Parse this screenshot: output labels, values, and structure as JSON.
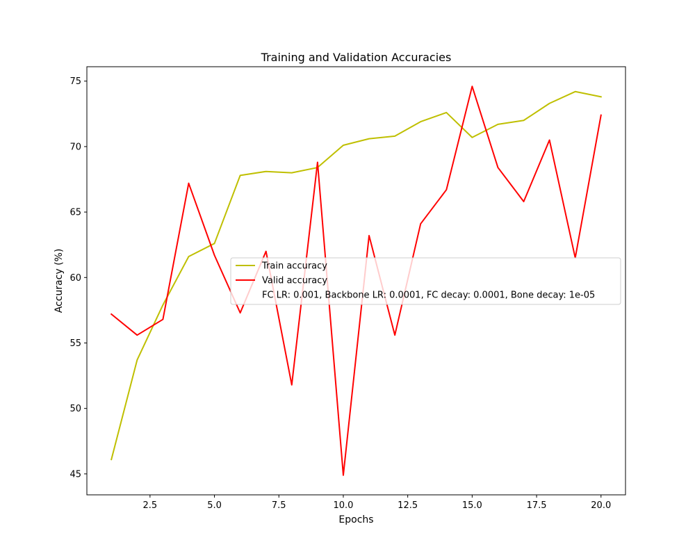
{
  "chart_data": {
    "type": "line",
    "title": "Training and Validation Accuracies",
    "xlabel": "Epochs",
    "ylabel": "Accuracy (%)",
    "xlim": [
      0.05,
      20.95
    ],
    "ylim": [
      43.4,
      76.1
    ],
    "xticks": [
      2.5,
      5.0,
      7.5,
      10.0,
      12.5,
      15.0,
      17.5,
      20.0
    ],
    "xtick_labels": [
      "2.5",
      "5.0",
      "7.5",
      "10.0",
      "12.5",
      "15.0",
      "17.5",
      "20.0"
    ],
    "yticks": [
      45,
      50,
      55,
      60,
      65,
      70,
      75
    ],
    "ytick_labels": [
      "45",
      "50",
      "55",
      "60",
      "65",
      "70",
      "75"
    ],
    "grid": false,
    "legend_position": "center-right",
    "x": [
      1,
      2,
      3,
      4,
      5,
      6,
      7,
      8,
      9,
      10,
      11,
      12,
      13,
      14,
      15,
      16,
      17,
      18,
      19,
      20
    ],
    "series": [
      {
        "name": "Train accuracy",
        "color": "#bfbf00",
        "values": [
          46.1,
          53.7,
          57.9,
          61.6,
          62.6,
          67.8,
          68.1,
          68.0,
          68.4,
          70.1,
          70.6,
          70.8,
          71.9,
          72.6,
          70.7,
          71.7,
          72.0,
          73.3,
          74.2,
          73.8
        ]
      },
      {
        "name": "Valid accuracy",
        "color": "#ff0000",
        "values": [
          57.2,
          55.6,
          56.8,
          67.2,
          61.7,
          57.3,
          62.0,
          51.8,
          68.8,
          44.9,
          63.2,
          55.6,
          64.1,
          66.7,
          74.6,
          68.4,
          65.8,
          70.5,
          61.5,
          72.4
        ]
      }
    ],
    "legend_extra_text": "FC LR: 0.001, Backbone LR: 0.0001, FC decay: 0.0001, Bone decay: 1e-05"
  }
}
